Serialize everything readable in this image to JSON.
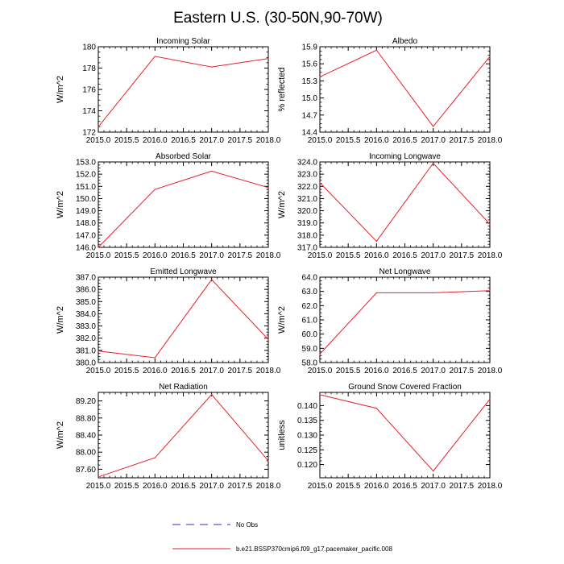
{
  "figure": {
    "title": "Eastern U.S. (30-50N,90-70W)",
    "legend": [
      {
        "label": "No Obs",
        "style": "dashed",
        "color": "#2b2bd9"
      },
      {
        "label": "b.e21.BSSP370cmip6.f09_g17.pacemaker_pacific.008",
        "style": "solid",
        "color": "#e8202a"
      }
    ]
  },
  "chart_data": [
    {
      "type": "line",
      "title": "Incoming Solar",
      "ylabel": "W/m^2",
      "x": [
        2015,
        2016,
        2017,
        2018
      ],
      "series": [
        {
          "name": "b.e21.BSSP370cmip6.f09_g17.pacemaker_pacific.008",
          "values": [
            172.5,
            179.1,
            178.1,
            178.9
          ]
        }
      ],
      "xlim": [
        2015,
        2018
      ],
      "ylim": [
        172,
        180
      ],
      "yticks": [
        172,
        174,
        176,
        178,
        180
      ],
      "yticklabels": [
        "172",
        "174",
        "176",
        "178",
        "180"
      ],
      "xticks": [
        2015,
        2015.5,
        2016,
        2016.5,
        2017,
        2017.5,
        2018
      ],
      "xticklabels": [
        "2015.0",
        "2015.5",
        "2016.0",
        "2016.5",
        "2017.0",
        "2017.5",
        "2018.0"
      ]
    },
    {
      "type": "line",
      "title": "Albedo",
      "ylabel": "% reflected",
      "x": [
        2015,
        2016,
        2017,
        2018
      ],
      "series": [
        {
          "name": "b.e21.BSSP370cmip6.f09_g17.pacemaker_pacific.008",
          "values": [
            15.37,
            15.84,
            14.5,
            15.73
          ]
        }
      ],
      "xlim": [
        2015,
        2018
      ],
      "ylim": [
        14.4,
        15.9
      ],
      "yticks": [
        14.4,
        14.7,
        15.0,
        15.3,
        15.6,
        15.9
      ],
      "yticklabels": [
        "14.4",
        "14.7",
        "15.0",
        "15.3",
        "15.6",
        "15.9"
      ],
      "xticks": [
        2015,
        2015.5,
        2016,
        2016.5,
        2017,
        2017.5,
        2018
      ],
      "xticklabels": [
        "2015.0",
        "2015.5",
        "2016.0",
        "2016.5",
        "2017.0",
        "2017.5",
        "2018.0"
      ]
    },
    {
      "type": "line",
      "title": "Absorbed Solar",
      "ylabel": "W/m^2",
      "x": [
        2015,
        2016,
        2017,
        2018
      ],
      "series": [
        {
          "name": "b.e21.BSSP370cmip6.f09_g17.pacemaker_pacific.008",
          "values": [
            146.0,
            150.75,
            152.25,
            150.9
          ]
        }
      ],
      "xlim": [
        2015,
        2018
      ],
      "ylim": [
        146,
        153
      ],
      "yticks": [
        146,
        147,
        148,
        149,
        150,
        151,
        152,
        153
      ],
      "yticklabels": [
        "146.0",
        "147.0",
        "148.0",
        "149.0",
        "150.0",
        "151.0",
        "152.0",
        "153.0"
      ],
      "xticks": [
        2015,
        2015.5,
        2016,
        2016.5,
        2017,
        2017.5,
        2018
      ],
      "xticklabels": [
        "2015.0",
        "2015.5",
        "2016.0",
        "2016.5",
        "2017.0",
        "2017.5",
        "2018.0"
      ]
    },
    {
      "type": "line",
      "title": "Incoming Longwave",
      "ylabel": "W/m^2",
      "x": [
        2015,
        2016,
        2017,
        2018
      ],
      "series": [
        {
          "name": "b.e21.BSSP370cmip6.f09_g17.pacemaker_pacific.008",
          "values": [
            322.3,
            317.5,
            323.9,
            318.9
          ]
        }
      ],
      "xlim": [
        2015,
        2018
      ],
      "ylim": [
        317,
        324
      ],
      "yticks": [
        317,
        318,
        319,
        320,
        321,
        322,
        323,
        324
      ],
      "yticklabels": [
        "317.0",
        "318.0",
        "319.0",
        "320.0",
        "321.0",
        "322.0",
        "323.0",
        "324.0"
      ],
      "xticks": [
        2015,
        2015.5,
        2016,
        2016.5,
        2017,
        2017.5,
        2018
      ],
      "xticklabels": [
        "2015.0",
        "2015.5",
        "2016.0",
        "2016.5",
        "2017.0",
        "2017.5",
        "2018.0"
      ]
    },
    {
      "type": "line",
      "title": "Emitted Longwave",
      "ylabel": "W/m^2",
      "x": [
        2015,
        2016,
        2017,
        2018
      ],
      "series": [
        {
          "name": "b.e21.BSSP370cmip6.f09_g17.pacemaker_pacific.008",
          "values": [
            380.95,
            380.4,
            386.8,
            381.9
          ]
        }
      ],
      "xlim": [
        2015,
        2018
      ],
      "ylim": [
        380,
        387
      ],
      "yticks": [
        380,
        381,
        382,
        383,
        384,
        385,
        386,
        387
      ],
      "yticklabels": [
        "380.0",
        "381.0",
        "382.0",
        "383.0",
        "384.0",
        "385.0",
        "386.0",
        "387.0"
      ],
      "xticks": [
        2015,
        2015.5,
        2016,
        2016.5,
        2017,
        2017.5,
        2018
      ],
      "xticklabels": [
        "2015.0",
        "2015.5",
        "2016.0",
        "2016.5",
        "2017.0",
        "2017.5",
        "2018.0"
      ]
    },
    {
      "type": "line",
      "title": "Net Longwave",
      "ylabel": "W/m^2",
      "x": [
        2015,
        2016,
        2017,
        2018
      ],
      "series": [
        {
          "name": "b.e21.BSSP370cmip6.f09_g17.pacemaker_pacific.008",
          "values": [
            58.6,
            62.9,
            62.9,
            63.05
          ]
        }
      ],
      "xlim": [
        2015,
        2018
      ],
      "ylim": [
        58,
        64
      ],
      "yticks": [
        58,
        59,
        60,
        61,
        62,
        63,
        64
      ],
      "yticklabels": [
        "58.0",
        "59.0",
        "60.0",
        "61.0",
        "62.0",
        "63.0",
        "64.0"
      ],
      "xticks": [
        2015,
        2015.5,
        2016,
        2016.5,
        2017,
        2017.5,
        2018
      ],
      "xticklabels": [
        "2015.0",
        "2015.5",
        "2016.0",
        "2016.5",
        "2017.0",
        "2017.5",
        "2018.0"
      ]
    },
    {
      "type": "line",
      "title": "Net Radiation",
      "ylabel": "W/m^2",
      "x": [
        2015,
        2016,
        2017,
        2018
      ],
      "series": [
        {
          "name": "b.e21.BSSP370cmip6.f09_g17.pacemaker_pacific.008",
          "values": [
            87.42,
            87.87,
            89.35,
            87.8
          ]
        }
      ],
      "xlim": [
        2015,
        2018
      ],
      "ylim": [
        87.4,
        89.4
      ],
      "yticks": [
        87.6,
        88.0,
        88.4,
        88.8,
        89.2
      ],
      "yticklabels": [
        "87.60",
        "88.00",
        "88.40",
        "88.80",
        "89.20"
      ],
      "xticks": [
        2015,
        2015.5,
        2016,
        2016.5,
        2017,
        2017.5,
        2018
      ],
      "xticklabels": [
        "2015.0",
        "2015.5",
        "2016.0",
        "2016.5",
        "2017.0",
        "2017.5",
        "2018.0"
      ]
    },
    {
      "type": "line",
      "title": "Ground Snow Covered Fraction",
      "ylabel": "unitless",
      "x": [
        2015,
        2016,
        2017,
        2018
      ],
      "series": [
        {
          "name": "b.e21.BSSP370cmip6.f09_g17.pacemaker_pacific.008",
          "values": [
            0.1437,
            0.1391,
            0.1178,
            0.1422
          ]
        }
      ],
      "xlim": [
        2015,
        2018
      ],
      "ylim": [
        0.1155,
        0.1445
      ],
      "yticks": [
        0.12,
        0.125,
        0.13,
        0.135,
        0.14
      ],
      "yticklabels": [
        "0.120",
        "0.125",
        "0.130",
        "0.135",
        "0.140"
      ],
      "xticks": [
        2015,
        2015.5,
        2016,
        2016.5,
        2017,
        2017.5,
        2018
      ],
      "xticklabels": [
        "2015.0",
        "2015.5",
        "2016.0",
        "2016.5",
        "2017.0",
        "2017.5",
        "2018.0"
      ]
    }
  ]
}
